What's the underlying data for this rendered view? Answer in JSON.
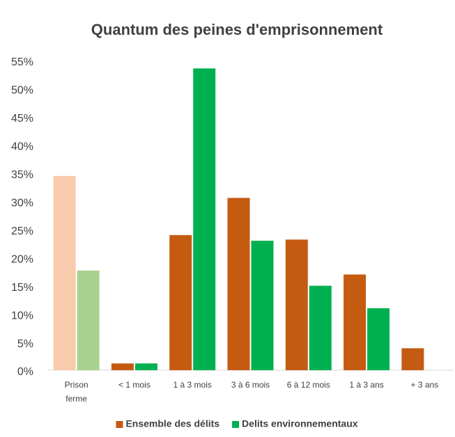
{
  "chart_data": {
    "type": "bar",
    "title": "Quantum des peines d'emprisonnement",
    "categories": [
      "Prison ferme",
      "< 1 mois",
      "1 à 3 mois",
      "3 à 6 mois",
      "6 à 12 mois",
      "1 à 3 ans",
      "+ 3 ans"
    ],
    "series": [
      {
        "name": "Ensemble des délits",
        "color": "#c55a11",
        "colors": [
          "#f8cbad",
          "#c55a11",
          "#c55a11",
          "#c55a11",
          "#c55a11",
          "#c55a11",
          "#c55a11"
        ],
        "values": [
          34.5,
          1.2,
          24,
          30.6,
          23.2,
          17,
          3.9
        ]
      },
      {
        "name": "Delits environnementaux",
        "color": "#00b050",
        "colors": [
          "#a9d18e",
          "#00b050",
          "#00b050",
          "#00b050",
          "#00b050",
          "#00b050",
          "#00b050"
        ],
        "values": [
          17.7,
          1.2,
          53.6,
          23,
          15,
          11,
          null
        ]
      }
    ],
    "ylim": [
      0,
      55
    ],
    "yticks": [
      {
        "value": 0,
        "label": "0%"
      },
      {
        "value": 5,
        "label": "5%"
      },
      {
        "value": 10,
        "label": "10%"
      },
      {
        "value": 15,
        "label": "15%"
      },
      {
        "value": 20,
        "label": "20%"
      },
      {
        "value": 25,
        "label": "25%"
      },
      {
        "value": 30,
        "label": "30%"
      },
      {
        "value": 35,
        "label": "35%"
      },
      {
        "value": 40,
        "label": "40%"
      },
      {
        "value": 45,
        "label": "45%"
      },
      {
        "value": 50,
        "label": "50%"
      },
      {
        "value": 55,
        "label": "55%"
      }
    ],
    "grid": false,
    "legend": "bottom"
  }
}
